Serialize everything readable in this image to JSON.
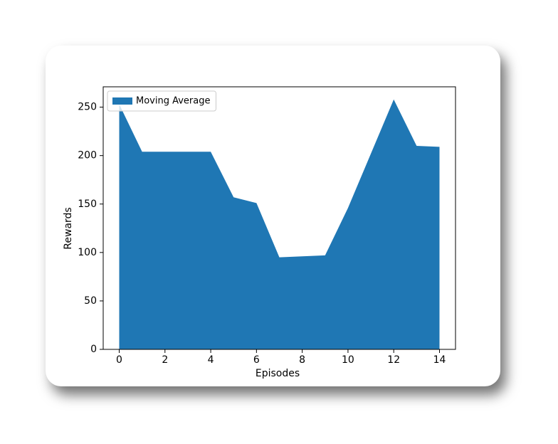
{
  "chart_data": {
    "type": "area",
    "xlabel": "Episodes",
    "ylabel": "Rewards",
    "x": [
      0,
      1,
      2,
      3,
      4,
      5,
      6,
      7,
      8,
      9,
      10,
      11,
      12,
      13,
      14
    ],
    "series": [
      {
        "name": "Moving Average",
        "color": "#1f77b4",
        "values": [
          253,
          204,
          204,
          204,
          204,
          157,
          151,
          95,
          96,
          97,
          146,
          202,
          258,
          210,
          209
        ]
      }
    ],
    "xlim": [
      -0.7,
      14.7
    ],
    "xticks": [
      0,
      2,
      4,
      6,
      8,
      10,
      12,
      14
    ],
    "ylim": [
      0,
      271
    ],
    "yticks": [
      0,
      50,
      100,
      150,
      200,
      250
    ],
    "legend": "upper left"
  }
}
